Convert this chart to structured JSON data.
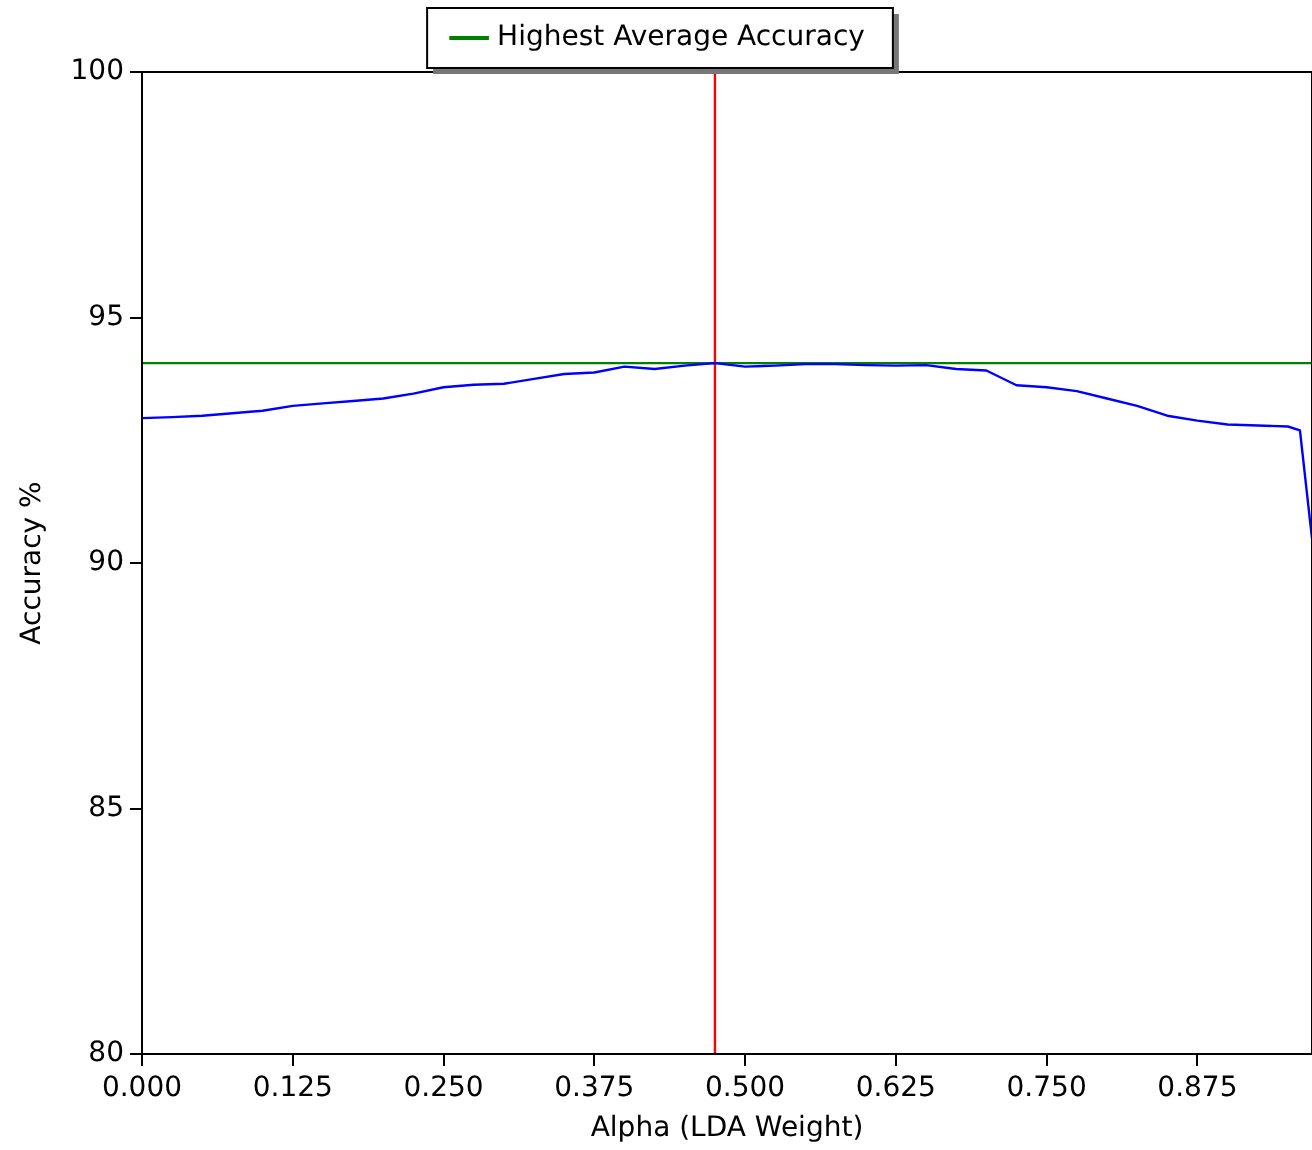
{
  "chart_data": {
    "type": "line",
    "xlabel": "Alpha (LDA Weight)",
    "ylabel": "Accuracy %",
    "x": [
      0,
      0.025,
      0.05,
      0.075,
      0.1,
      0.125,
      0.15,
      0.175,
      0.2,
      0.225,
      0.25,
      0.275,
      0.3,
      0.325,
      0.35,
      0.375,
      0.4,
      0.425,
      0.45,
      0.475,
      0.5,
      0.525,
      0.55,
      0.575,
      0.6,
      0.625,
      0.65,
      0.675,
      0.7,
      0.725,
      0.75,
      0.775,
      0.8,
      0.825,
      0.85,
      0.875,
      0.9,
      0.925,
      0.95,
      0.96,
      0.97
    ],
    "series": [
      {
        "color": "#0000ff",
        "values": [
          92.95,
          92.97,
          93.0,
          93.05,
          93.1,
          93.2,
          93.25,
          93.3,
          93.35,
          93.45,
          93.58,
          93.63,
          93.65,
          93.75,
          93.85,
          93.88,
          94.0,
          93.95,
          94.02,
          94.07,
          94.0,
          94.02,
          94.05,
          94.05,
          94.03,
          94.02,
          94.03,
          93.95,
          93.92,
          93.62,
          93.58,
          93.5,
          93.35,
          93.2,
          93.0,
          92.9,
          92.82,
          92.8,
          92.78,
          92.7,
          90.5
        ]
      }
    ],
    "ref_lines": [
      {
        "axis": "y",
        "value": 94.07,
        "label": "Highest Average Accuracy",
        "color": "#008000"
      },
      {
        "axis": "x",
        "value": 0.475,
        "color": "#ff0000"
      }
    ],
    "xlim": [
      0,
      0.97
    ],
    "xticks": [
      {
        "value": 0,
        "label": "0.000"
      },
      0.125,
      {
        "value": 0.25,
        "label": "0.250"
      },
      0.375,
      {
        "value": 0.5,
        "label": "0.500"
      },
      0.625,
      {
        "value": 0.75,
        "label": "0.750"
      },
      0.875
    ],
    "ylim": [
      80,
      100
    ],
    "yticks": [
      80,
      85,
      90,
      95,
      100
    ],
    "grid": false,
    "legend": "top",
    "marker": "none",
    "line_style": "solid"
  }
}
